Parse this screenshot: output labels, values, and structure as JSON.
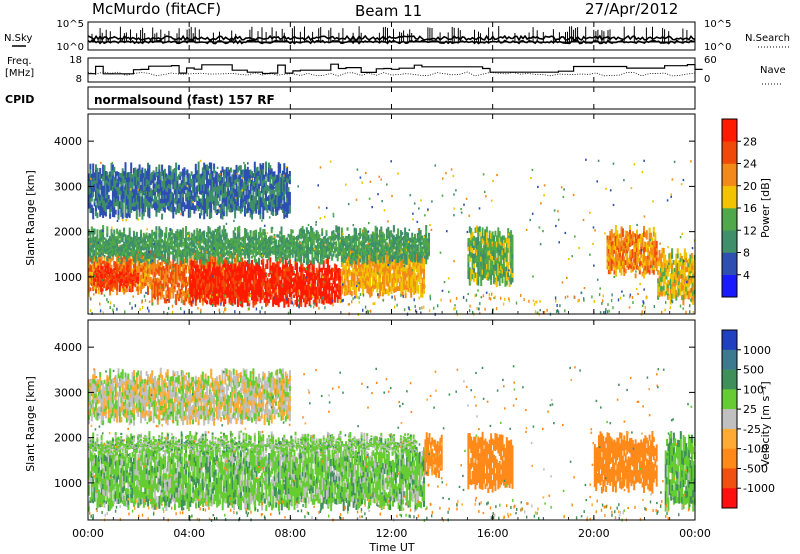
{
  "header": {
    "station": "McMurdo (fitACF)",
    "beam": "Beam 11",
    "date": "27/Apr/2012"
  },
  "noise_panel": {
    "left_label": "N.Sky",
    "right_label": "N.Search",
    "left_ticks": [
      "10^5",
      "10^0"
    ],
    "right_ticks": [
      "10^5",
      "10^0"
    ]
  },
  "freq_panel": {
    "left_label_line1": "Freq.",
    "left_label_line2": "[MHz]",
    "right_label": "Nave",
    "left_ticks": [
      "18",
      "8"
    ],
    "right_ticks": [
      "60",
      "0"
    ]
  },
  "cpid": {
    "label": "CPID",
    "value": "normalsound (fast) 157 RF"
  },
  "power_panel": {
    "ylabel": "Slant Range [km]",
    "yticks": [
      "1000",
      "2000",
      "3000",
      "4000"
    ],
    "colorbar_label": "Power [dB]",
    "colorbar_ticks": [
      "4",
      "8",
      "12",
      "16",
      "20",
      "24",
      "28"
    ],
    "colors": [
      "#1a1aff",
      "#2d4fb0",
      "#3f8f6a",
      "#4fa84a",
      "#f2c300",
      "#f28a1a",
      "#f04a0a",
      "#ff1a00"
    ]
  },
  "velocity_panel": {
    "ylabel": "Slant Range [km]",
    "yticks": [
      "1000",
      "2000",
      "3000",
      "4000"
    ],
    "colorbar_label": "Velocity [m s⁻¹]",
    "colorbar_ticks": [
      "1000",
      "500",
      "100",
      "25",
      "-25",
      "-100",
      "-500",
      "-1000"
    ],
    "colors": [
      "#2040c0",
      "#3c7a90",
      "#3f8f5a",
      "#66cc33",
      "#c0c0c0",
      "#ffaa33",
      "#ff8a1a",
      "#f05010",
      "#ff1010"
    ]
  },
  "x_axis": {
    "ticks": [
      "00:00",
      "04:00",
      "08:00",
      "12:00",
      "16:00",
      "20:00",
      "00:00"
    ],
    "label": "Time UT"
  },
  "chart_data": [
    {
      "type": "heatmap",
      "name": "power",
      "ylabel": "Slant Range [km]",
      "ylim": [
        180,
        4600
      ],
      "xlim": [
        "00:00",
        "24:00"
      ],
      "colorbar": {
        "label": "Power [dB]",
        "range": [
          0,
          32
        ]
      },
      "regions": [
        {
          "x": [
            0.0,
            2.5
          ],
          "y": [
            700,
            1500
          ],
          "value": 22
        },
        {
          "x": [
            0.2,
            2.0
          ],
          "y": [
            800,
            1200
          ],
          "value": 28
        },
        {
          "x": [
            2.5,
            6.0
          ],
          "y": [
            500,
            1400
          ],
          "value": 24
        },
        {
          "x": [
            4.0,
            10.0
          ],
          "y": [
            450,
            1300
          ],
          "value": 30
        },
        {
          "x": [
            10.0,
            13.3
          ],
          "y": [
            650,
            1600
          ],
          "value": 20
        },
        {
          "x": [
            0.0,
            13.5
          ],
          "y": [
            1400,
            2000
          ],
          "value": 12
        },
        {
          "x": [
            0.0,
            8.0
          ],
          "y": [
            2400,
            3400
          ],
          "value": 8
        },
        {
          "x": [
            15.0,
            16.8
          ],
          "y": [
            900,
            2000
          ],
          "value": 14
        },
        {
          "x": [
            20.5,
            22.5
          ],
          "y": [
            1100,
            2000
          ],
          "value": 22
        },
        {
          "x": [
            22.5,
            24.0
          ],
          "y": [
            500,
            1500
          ],
          "value": 18
        }
      ]
    },
    {
      "type": "heatmap",
      "name": "velocity",
      "ylabel": "Slant Range [km]",
      "ylim": [
        180,
        4600
      ],
      "xlim": [
        "00:00",
        "24:00"
      ],
      "colorbar": {
        "label": "Velocity [m s⁻¹]",
        "range": [
          -1000,
          1000
        ]
      },
      "regions": [
        {
          "x": [
            0.0,
            13.3
          ],
          "y": [
            500,
            1700
          ],
          "value": 60
        },
        {
          "x": [
            0.0,
            13.0
          ],
          "y": [
            1700,
            2000
          ],
          "value": 50
        },
        {
          "x": [
            0.0,
            8.0
          ],
          "y": [
            2400,
            3400
          ],
          "value": 0
        },
        {
          "x": [
            13.3,
            14.0
          ],
          "y": [
            1200,
            2000
          ],
          "value": -150
        },
        {
          "x": [
            15.0,
            16.8
          ],
          "y": [
            900,
            2000
          ],
          "value": -180
        },
        {
          "x": [
            20.0,
            22.5
          ],
          "y": [
            900,
            2000
          ],
          "value": -200
        },
        {
          "x": [
            22.8,
            24.0
          ],
          "y": [
            500,
            2000
          ],
          "value": 80
        }
      ]
    }
  ]
}
